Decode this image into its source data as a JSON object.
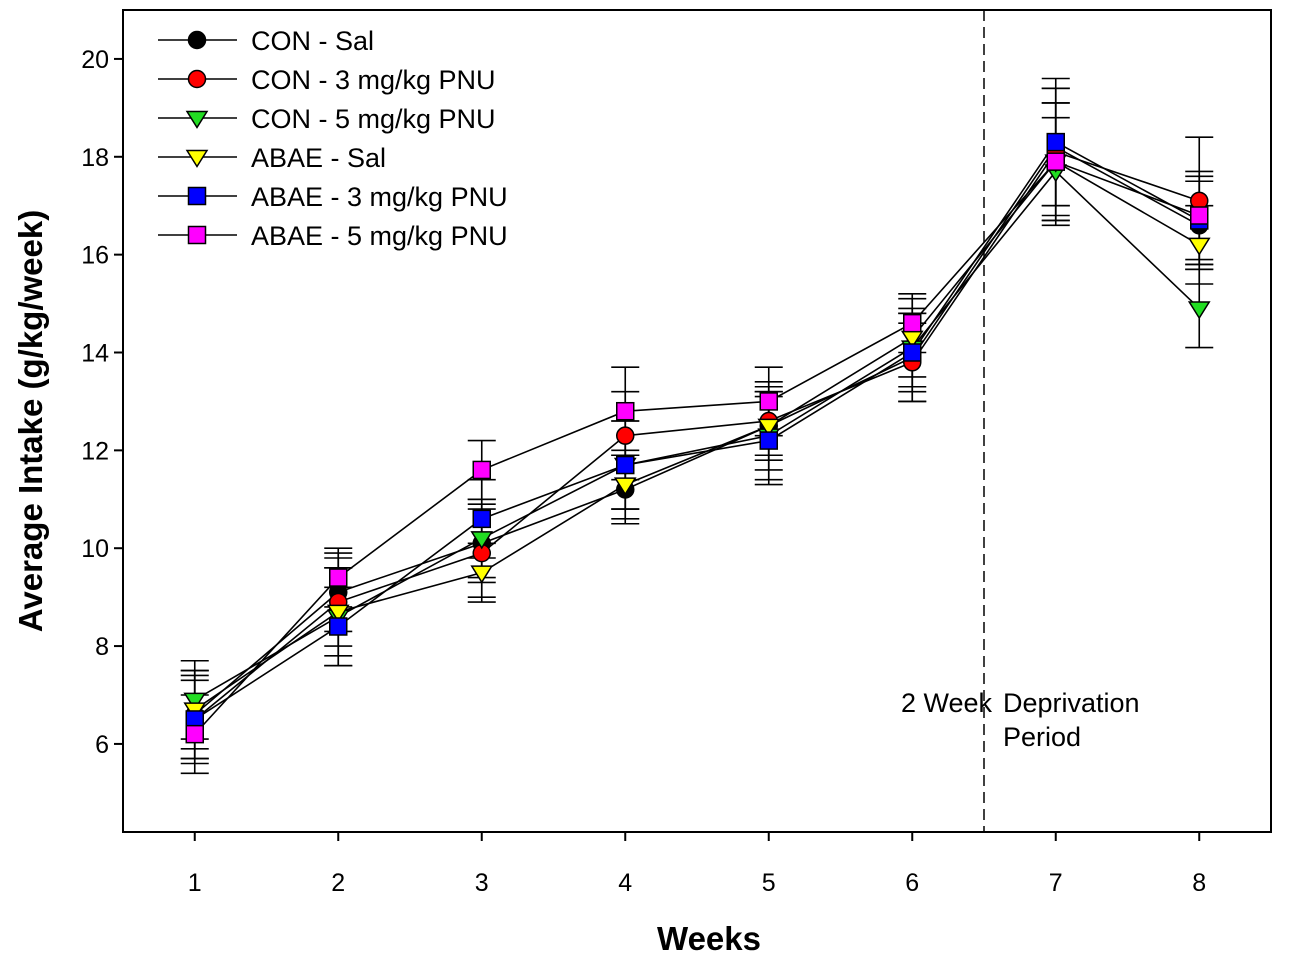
{
  "chart_data": {
    "type": "line",
    "title": "",
    "xlabel": "Weeks",
    "ylabel": "Average Intake (g/kg/week)",
    "x": [
      1,
      2,
      3,
      4,
      5,
      6,
      7,
      8
    ],
    "x_tick_labels": [
      "1",
      "2",
      "3",
      "4",
      "5",
      "6",
      "7",
      "8"
    ],
    "xlim": [
      0.5,
      8.5
    ],
    "ylim": [
      4.2,
      21
    ],
    "y_ticks": [
      6,
      8,
      10,
      12,
      14,
      16,
      18,
      20
    ],
    "y_tick_labels": [
      "6",
      "8",
      "10",
      "12",
      "14",
      "16",
      "18",
      "20"
    ],
    "grid": false,
    "legend_position": "top-left",
    "series": [
      {
        "name": "CON - Sal",
        "marker": "circle",
        "color": "#000000",
        "values": [
          6.6,
          9.1,
          10.1,
          11.2,
          12.5,
          13.9,
          18.2,
          16.6
        ],
        "errors": [
          0.9,
          0.8,
          0.8,
          0.7,
          0.7,
          0.9,
          1.2,
          0.9
        ]
      },
      {
        "name": "CON - 3 mg/kg PNU",
        "marker": "circle",
        "color": "#ff0000",
        "values": [
          6.5,
          8.9,
          9.9,
          12.3,
          12.6,
          13.8,
          18.1,
          17.1
        ],
        "errors": [
          0.9,
          0.9,
          0.9,
          0.9,
          0.7,
          0.8,
          1.3,
          1.3
        ]
      },
      {
        "name": "CON - 5 mg/kg PNU",
        "marker": "triangle-down",
        "color": "#22dd22",
        "values": [
          6.9,
          8.6,
          10.2,
          11.7,
          12.3,
          14.1,
          17.7,
          14.9
        ],
        "errors": [
          0.8,
          1.0,
          0.8,
          0.9,
          0.9,
          0.8,
          1.1,
          0.8
        ]
      },
      {
        "name": "ABAE - Sal",
        "marker": "triangle-down",
        "color": "#ffff00",
        "values": [
          6.7,
          8.7,
          9.5,
          11.3,
          12.5,
          14.3,
          17.9,
          16.2
        ],
        "errors": [
          0.8,
          0.9,
          0.6,
          0.7,
          0.9,
          0.8,
          1.2,
          0.8
        ]
      },
      {
        "name": "ABAE - 3 mg/kg PNU",
        "marker": "square",
        "color": "#0000ff",
        "values": [
          6.5,
          8.4,
          10.6,
          11.7,
          12.2,
          14.0,
          18.3,
          16.7
        ],
        "errors": [
          0.8,
          0.8,
          0.8,
          0.9,
          0.9,
          0.8,
          1.3,
          0.9
        ]
      },
      {
        "name": "ABAE - 5 mg/kg PNU",
        "marker": "square",
        "color": "#ff00ff",
        "values": [
          6.2,
          9.4,
          11.6,
          12.8,
          13.0,
          14.6,
          17.9,
          16.8
        ],
        "errors": [
          0.8,
          0.6,
          0.6,
          0.9,
          0.7,
          0.6,
          1.2,
          0.9
        ]
      }
    ],
    "annotations": {
      "deprivation_line_x": 6.5,
      "left_text": "2 Week",
      "right_text_line1": "Deprivation",
      "right_text_line2": "Period"
    }
  }
}
